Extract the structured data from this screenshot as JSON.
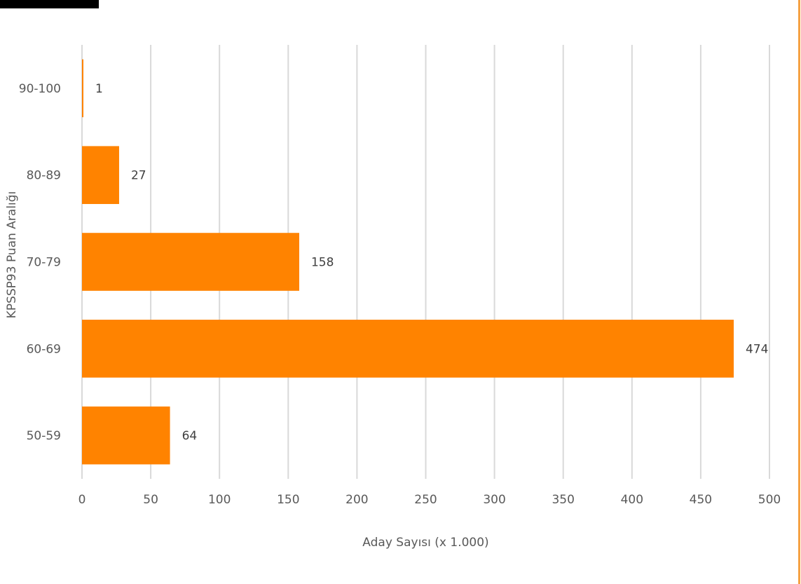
{
  "colors": {
    "bar": "#FF8300",
    "grid": "#D9D9D9",
    "text": "#595959",
    "frame_accent": "#F5A142",
    "top_bar": "#000000"
  },
  "chart_data": {
    "type": "bar",
    "orientation": "horizontal",
    "categories": [
      "90-100",
      "80-89",
      "70-79",
      "60-69",
      "50-59"
    ],
    "values": [
      1,
      27,
      158,
      474,
      64
    ],
    "title": "",
    "xlabel": "Aday Sayısı (x 1.000)",
    "ylabel": "KPSSP93 Puan Aralığı",
    "xlim": [
      0,
      500
    ],
    "xticks": [
      0,
      50,
      100,
      150,
      200,
      250,
      300,
      350,
      400,
      450,
      500
    ],
    "grid": "vertical",
    "legend": "none",
    "data_labels": true
  }
}
